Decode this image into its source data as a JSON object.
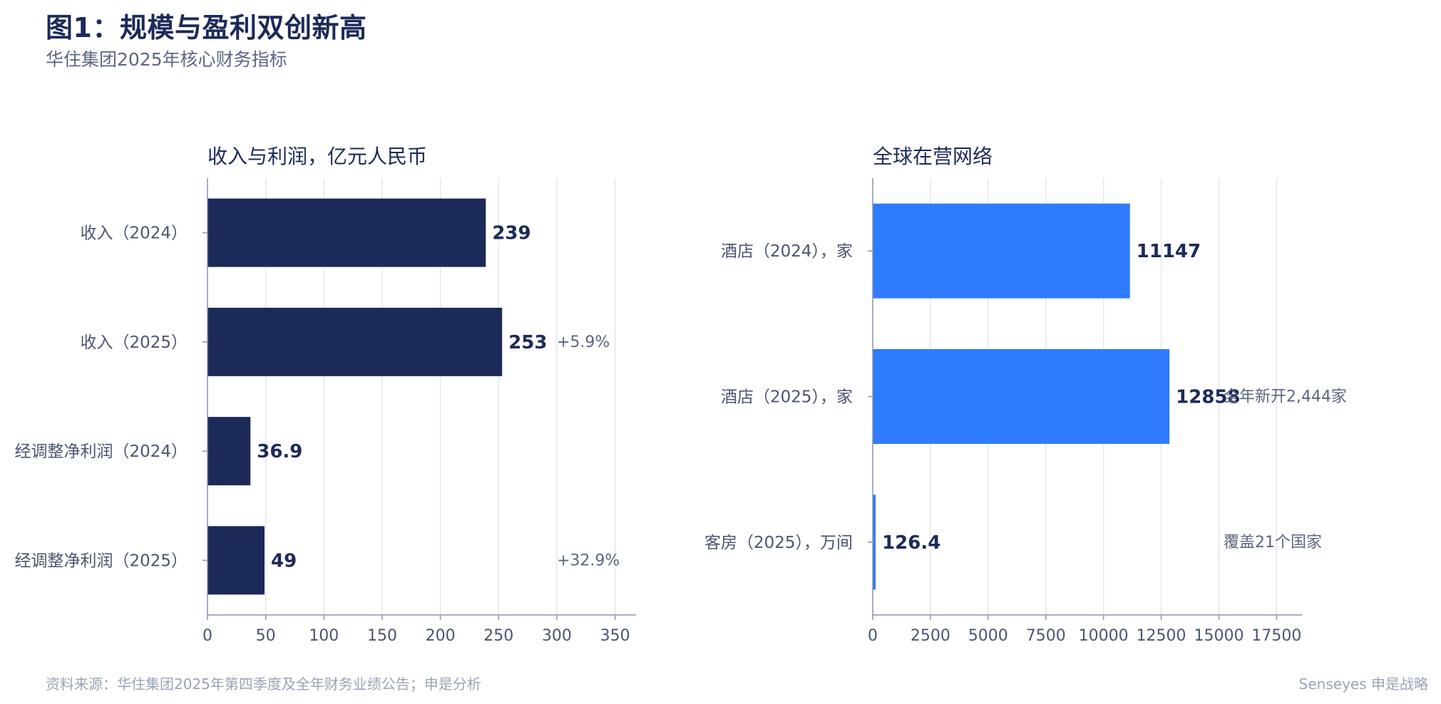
{
  "header": {
    "title": "图1：规模与盈利双创新高",
    "subtitle": "华住集团2025年核心财务指标"
  },
  "footer": {
    "source": "资料来源：华住集团2025年第四季度及全年财务业绩公告；申是分析",
    "brand": "Senseyes 申是战略"
  },
  "colors": {
    "left_bar": "#1c2a59",
    "right_bar": "#2f7bff"
  },
  "chart_data": [
    {
      "type": "bar",
      "orientation": "horizontal",
      "title": "收入与利润，亿元人民币",
      "categories": [
        "收入（2024）",
        "收入（2025）",
        "经调整净利润（2024）",
        "经调整净利润（2025）"
      ],
      "values": [
        239,
        253,
        36.9,
        49
      ],
      "value_labels": [
        "239",
        "253",
        "36.9",
        "49"
      ],
      "annotations": [
        "",
        "+5.9%",
        "",
        "+32.9%"
      ],
      "annotation_x": [
        0,
        300,
        0,
        300
      ],
      "xlim": [
        0,
        368
      ],
      "xticks": [
        0,
        50,
        100,
        150,
        200,
        250,
        300,
        350
      ],
      "grid": true
    },
    {
      "type": "bar",
      "orientation": "horizontal",
      "title": "全球在营网络",
      "categories": [
        "酒店（2024），家",
        "酒店（2025），家",
        "客房（2025），万间"
      ],
      "values": [
        11147,
        12858,
        126.4
      ],
      "value_labels": [
        "11147",
        "12858",
        "126.4"
      ],
      "annotations": [
        "",
        "全年新开2,444家",
        "覆盖21个国家"
      ],
      "annotation_x": [
        0,
        15200,
        15200
      ],
      "xlim": [
        0,
        18600
      ],
      "xticks": [
        0,
        2500,
        5000,
        7500,
        10000,
        12500,
        15000,
        17500
      ],
      "grid": true
    }
  ]
}
